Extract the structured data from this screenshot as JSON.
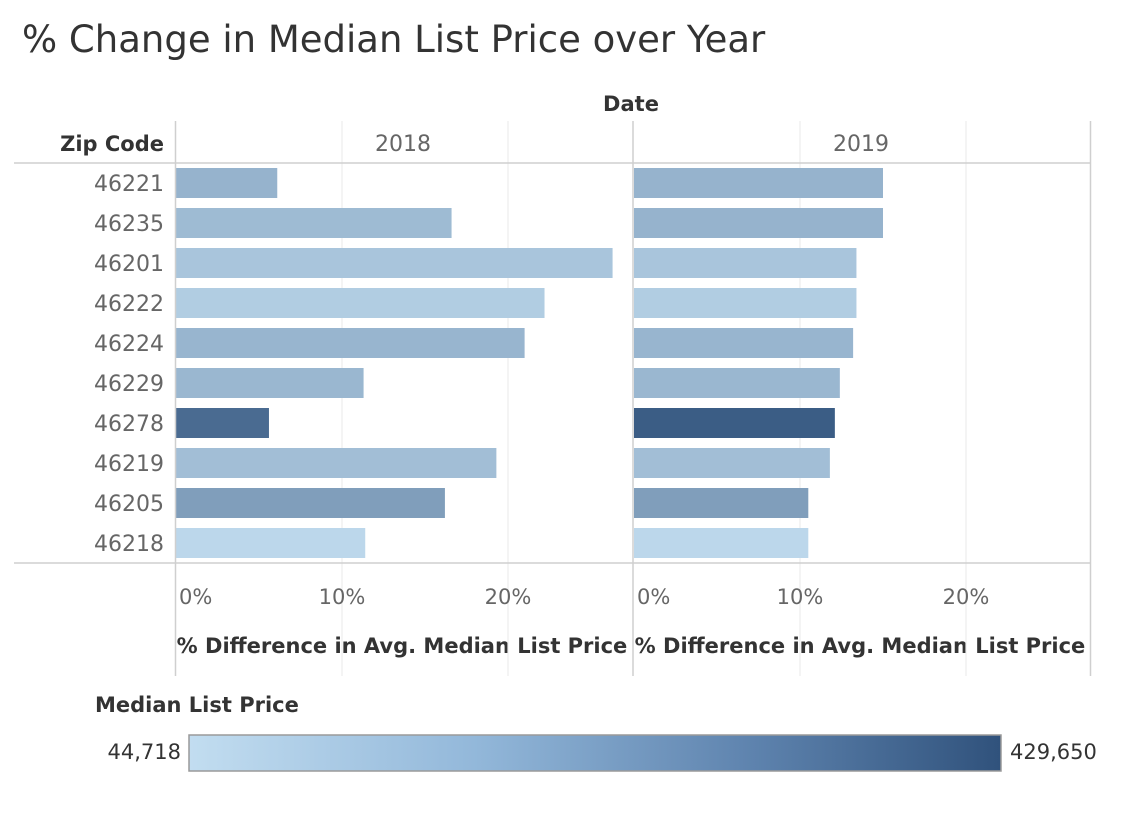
{
  "chart_data": {
    "type": "bar",
    "title": "% Change in Median List Price over Year",
    "column_header": "Date",
    "row_header": "Zip Code",
    "categories": [
      "46221",
      "46235",
      "46201",
      "46222",
      "46224",
      "46229",
      "46278",
      "46219",
      "46205",
      "46218"
    ],
    "panels": [
      {
        "name": "2018",
        "values": [
          6.1,
          16.6,
          26.3,
          22.2,
          21.0,
          11.3,
          5.6,
          19.3,
          16.2,
          11.4
        ],
        "xlabel": "% Difference in Avg. Median List Price"
      },
      {
        "name": "2019",
        "values": [
          15.0,
          15.0,
          13.4,
          13.4,
          13.2,
          12.4,
          12.1,
          11.8,
          10.5,
          10.5
        ],
        "xlabel": "% Difference in Avg. Median List Price"
      }
    ],
    "color_values": [
      [
        160000,
        140000,
        110000,
        90000,
        155000,
        150000,
        360000,
        130000,
        220000,
        60000
      ],
      [
        160000,
        160000,
        110000,
        90000,
        155000,
        150000,
        400000,
        130000,
        220000,
        60000
      ]
    ],
    "x_ticks": [
      "0%",
      "10%",
      "20%"
    ],
    "xlim": [
      0,
      27.5
    ],
    "grid": true,
    "legend": {
      "title": "Median List Price",
      "min_label": "44,718",
      "max_label": "429,650",
      "min": 44718,
      "max": 429650,
      "color_low": "#c2ddf0",
      "color_high": "#30527c",
      "position": "bottom-left"
    }
  }
}
